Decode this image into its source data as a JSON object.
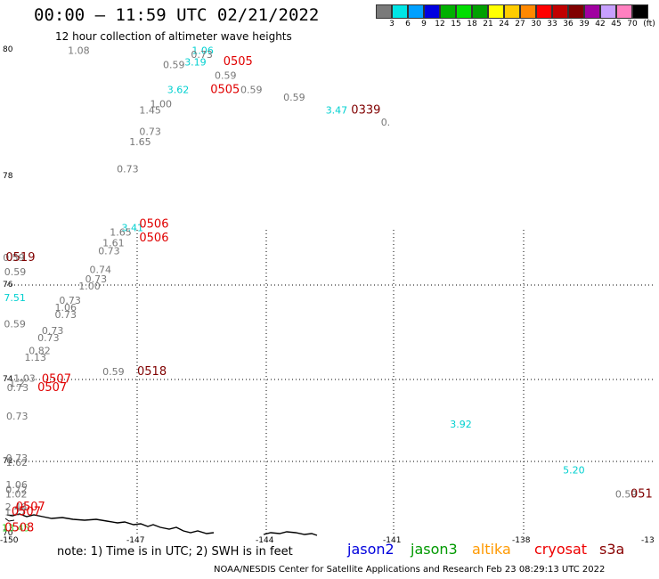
{
  "title": "00:00 – 11:59 UTC 02/21/2022",
  "subtitle": "12 hour collection of altimeter wave heights",
  "colorbar": {
    "colors": [
      "#7a7a7a",
      "#00e5e5",
      "#00a0ff",
      "#0000e0",
      "#00b000",
      "#00dd00",
      "#00a000",
      "#ffff00",
      "#ffcc00",
      "#ff8800",
      "#ff0000",
      "#c00000",
      "#800000",
      "#a000a0",
      "#c8a0ff",
      "#ff80c0",
      "#000000"
    ],
    "labels": [
      "3",
      "6",
      "9",
      "12",
      "15",
      "18",
      "21",
      "24",
      "27",
      "30",
      "33",
      "36",
      "39",
      "42",
      "45",
      "70"
    ],
    "unit": "(ft)"
  },
  "axes": {
    "lat_labels": [
      "80",
      "78",
      "76",
      "74",
      "72",
      "70"
    ],
    "lon_labels": [
      "-150",
      "-147",
      "-144",
      "-141",
      "-138",
      "-13"
    ]
  },
  "observations": [
    {
      "t": "1.08",
      "c": "#777777",
      "lon": -148.6,
      "lat": 79.92
    },
    {
      "t": "1.06",
      "c": "#00d0d0",
      "lon": -145.73,
      "lat": 79.92
    },
    {
      "t": "0.73",
      "c": "#777777",
      "lon": -145.75,
      "lat": 79.86
    },
    {
      "t": "0.59",
      "c": "#777777",
      "lon": -146.4,
      "lat": 79.7
    },
    {
      "t": "3.19",
      "c": "#00d0d0",
      "lon": -145.9,
      "lat": 79.74
    },
    {
      "t": "0505",
      "c": "#e00000",
      "lon": -145.0,
      "lat": 79.75,
      "code": true
    },
    {
      "t": "0.59",
      "c": "#777777",
      "lon": -145.2,
      "lat": 79.53
    },
    {
      "t": "3.62",
      "c": "#00d0d0",
      "lon": -146.3,
      "lat": 79.3
    },
    {
      "t": "0505",
      "c": "#e00000",
      "lon": -145.3,
      "lat": 79.3,
      "code": true
    },
    {
      "t": "0.59",
      "c": "#777777",
      "lon": -144.6,
      "lat": 79.3
    },
    {
      "t": "0.59",
      "c": "#777777",
      "lon": -143.6,
      "lat": 79.18
    },
    {
      "t": "3.47",
      "c": "#00d0d0",
      "lon": -142.6,
      "lat": 78.98
    },
    {
      "t": "0339",
      "c": "#800000",
      "lon": -142.0,
      "lat": 78.98,
      "code": true
    },
    {
      "t": "0.",
      "c": "#777777",
      "lon": -141.3,
      "lat": 78.79
    },
    {
      "t": "1.00",
      "c": "#777777",
      "lon": -146.7,
      "lat": 79.08
    },
    {
      "t": "1.45",
      "c": "#777777",
      "lon": -146.95,
      "lat": 78.98
    },
    {
      "t": "0.73",
      "c": "#777777",
      "lon": -146.95,
      "lat": 78.64
    },
    {
      "t": "1.65",
      "c": "#777777",
      "lon": -147.18,
      "lat": 78.48
    },
    {
      "t": "0.73",
      "c": "#777777",
      "lon": -147.47,
      "lat": 78.05
    },
    {
      "t": "3.41",
      "c": "#00d0d0",
      "lon": -147.36,
      "lat": 76.98
    },
    {
      "t": "0506",
      "c": "#e00000",
      "lon": -146.95,
      "lat": 77.05,
      "code": true
    },
    {
      "t": "1.65",
      "c": "#777777",
      "lon": -147.63,
      "lat": 76.9
    },
    {
      "t": "0506",
      "c": "#e00000",
      "lon": -146.95,
      "lat": 76.8,
      "code": true
    },
    {
      "t": "1.61",
      "c": "#777777",
      "lon": -147.8,
      "lat": 76.71
    },
    {
      "t": "0.73",
      "c": "#777777",
      "lon": -147.9,
      "lat": 76.56
    },
    {
      "t": "0.74",
      "c": "#777777",
      "lon": -148.1,
      "lat": 76.22
    },
    {
      "t": "0.73",
      "c": "#777777",
      "lon": -148.2,
      "lat": 76.05
    },
    {
      "t": "1.00",
      "c": "#777777",
      "lon": -148.35,
      "lat": 75.9
    },
    {
      "t": "0.59",
      "c": "#777777",
      "lon": -151.2,
      "lat": 76.44
    },
    {
      "t": "0519",
      "c": "#800000",
      "lon": -150.4,
      "lat": 76.44,
      "code": true
    },
    {
      "t": "0.59",
      "c": "#777777",
      "lon": -150.8,
      "lat": 76.18
    },
    {
      "t": "7.51",
      "c": "#00d0d0",
      "lon": -150.9,
      "lat": 75.66
    },
    {
      "t": "0.59",
      "c": "#777777",
      "lon": -150.9,
      "lat": 75.1
    },
    {
      "t": "0.73",
      "c": "#777777",
      "lon": -148.8,
      "lat": 75.6
    },
    {
      "t": "1.06",
      "c": "#777777",
      "lon": -148.9,
      "lat": 75.45
    },
    {
      "t": "0.73",
      "c": "#777777",
      "lon": -148.9,
      "lat": 75.3
    },
    {
      "t": "0.73",
      "c": "#777777",
      "lon": -149.2,
      "lat": 74.95
    },
    {
      "t": "0.73",
      "c": "#777777",
      "lon": -149.3,
      "lat": 74.8
    },
    {
      "t": "0.82",
      "c": "#777777",
      "lon": -149.5,
      "lat": 74.52
    },
    {
      "t": "1.13",
      "c": "#777777",
      "lon": -149.6,
      "lat": 74.38
    },
    {
      "t": "0.59",
      "c": "#777777",
      "lon": -147.8,
      "lat": 74.08
    },
    {
      "t": "0518",
      "c": "#800000",
      "lon": -147.0,
      "lat": 74.08,
      "code": true
    },
    {
      "t": "1.03",
      "c": "#777777",
      "lon": -149.85,
      "lat": 73.92
    },
    {
      "t": "0507",
      "c": "#e00000",
      "lon": -149.2,
      "lat": 73.9,
      "code": true
    },
    {
      "t": "1.2",
      "c": "#777777",
      "lon": -149.95,
      "lat": 73.8
    },
    {
      "t": "0.73",
      "c": "#777777",
      "lon": -150.1,
      "lat": 73.7
    },
    {
      "t": "0507",
      "c": "#e00000",
      "lon": -149.3,
      "lat": 73.7,
      "code": true
    },
    {
      "t": "0.73",
      "c": "#777777",
      "lon": -150.25,
      "lat": 73.0
    },
    {
      "t": "0.73",
      "c": "#777777",
      "lon": -150.35,
      "lat": 71.97
    },
    {
      "t": "1.62",
      "c": "#777777",
      "lon": -150.35,
      "lat": 71.86
    },
    {
      "t": "1.06",
      "c": "#777777",
      "lon": -150.4,
      "lat": 71.25
    },
    {
      "t": "0.72",
      "c": "#777777",
      "lon": -150.45,
      "lat": 71.12
    },
    {
      "t": "1.02",
      "c": "#777777",
      "lon": -150.5,
      "lat": 71.0
    },
    {
      "t": "3.92",
      "c": "#00d0d0",
      "lon": -139.7,
      "lat": 72.8
    },
    {
      "t": "5.20",
      "c": "#00d0d0",
      "lon": -136.8,
      "lat": 71.65
    },
    {
      "t": "0.59",
      "c": "#777777",
      "lon": -135.2,
      "lat": 71.0
    },
    {
      "t": "051",
      "c": "#800000",
      "lon": -134.2,
      "lat": 71.0,
      "code": true
    },
    {
      "t": "2.46",
      "c": "#777777",
      "lon": -150.55,
      "lat": 70.65
    },
    {
      "t": "0507",
      "c": "#e00000",
      "lon": -149.8,
      "lat": 70.65,
      "code": true
    },
    {
      "t": "1.27",
      "c": "#777777",
      "lon": -150.7,
      "lat": 70.52
    },
    {
      "t": "0507",
      "c": "#e00000",
      "lon": -149.9,
      "lat": 70.52,
      "code": true
    },
    {
      "t": "13.45",
      "c": "#33dd33",
      "lon": -151.5,
      "lat": 70.08
    },
    {
      "t": "0508",
      "c": "#e00000",
      "lon": -150.7,
      "lat": 70.08,
      "code": true
    }
  ],
  "note": "note: 1) Time is in UTC; 2) SWH is in feet",
  "satellites": [
    {
      "name": "jason2",
      "color": "#0000dd"
    },
    {
      "name": "jason3",
      "color": "#009900"
    },
    {
      "name": "altika",
      "color": "#ff9900"
    },
    {
      "name": "cryosat",
      "color": "#ee0000"
    },
    {
      "name": "s3a",
      "color": "#880000"
    }
  ],
  "footer": "NOAA/NESDIS Center for Satellite Applications and Research   Feb 23 08:29:13 UTC 2022"
}
